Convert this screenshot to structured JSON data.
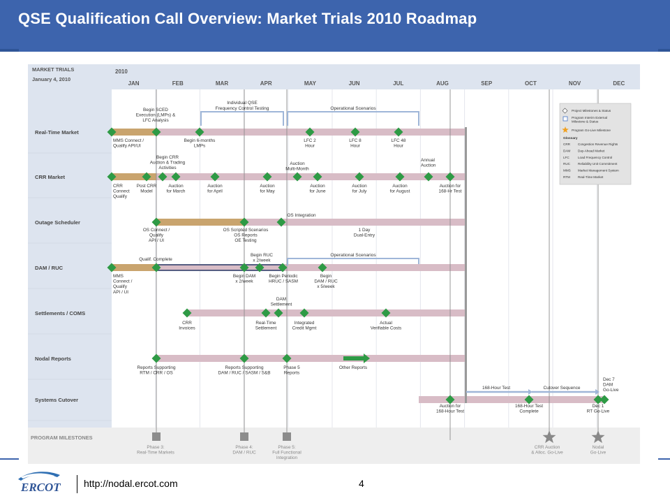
{
  "header": {
    "title": "QSE Qualification Call Overview: Market Trials 2010 Roadmap"
  },
  "corner": {
    "line1": "MARKET TRIALS",
    "line2": "January 4, 2010"
  },
  "year": "2010",
  "months": [
    "JAN",
    "FEB",
    "MAR",
    "APR",
    "MAY",
    "JUN",
    "JUL",
    "AUG",
    "SEP",
    "OCT",
    "NOV",
    "DEC"
  ],
  "tracks": [
    "Real-Time Market",
    "CRR Market",
    "Outage Scheduler",
    "DAM / RUC",
    "Settlements / COMS",
    "Nodal Reports",
    "Systems Cutover"
  ],
  "program_milestones_label": "PROGRAM MILESTONES",
  "bracket_labels": {
    "freq": "Individual QSE\nFrequency Control Testing",
    "ops_rt": "Operational Scenarios",
    "ops_dam": "Operational Scenarios",
    "h168": "168-Hour Test",
    "cutover": "Cutover Sequence"
  },
  "milestone_labels": [
    "Begin SCED\nExecution (LMPs) &\nLFC Analysis",
    "MMS Connect /\nQualify API/UI",
    "Begin 6-months\nLMPs",
    "LFC 2\nHour",
    "LFC 8\nHour",
    "LFC 48\nHour",
    "Begin CRR\nAuction & Trading\nActivities",
    "Auction\nMulti-Month",
    "Annual\nAuction",
    "CRR\nConnect\nQualify",
    "Post CRR\nModel",
    "Auction\nfor March",
    "Auction\nfor April",
    "Auction\nfor May",
    "Auction\nfor June",
    "Auction\nfor July",
    "Auction\nfor August",
    "Auction for\n168-Hr Test",
    "OS Integration",
    "OS Connect /\nQualify\nAPI / UI",
    "OS Scripted Scenarios\nOS Reports\nOE Testing",
    "1 Day\nDual-Entry",
    "Begin RUC\nx 2/week",
    "Qualif. Complete",
    "MMS\nConnect /\nQualify\nAPI / UI",
    "Begin DAM\nx 2/week",
    "Begin Periodic\nHRUC / SASM",
    "Begin\nDAM / RUC\nx 5/week",
    "DAM\nSettlement",
    "CRR\nInvoices",
    "Real-Time\nSettlement",
    "Integrated\nCredit Mgmt",
    "Actual\nVerifiable Costs",
    "Reports Supporting\nRTM / CRR / OS",
    "Reports Supporting\nDAM / RUC / SASM / S&B",
    "Phase 5\nReports",
    "Other Reports",
    "Dec 7\nDAM\nGo-Live",
    "Auction for\n168-Hour Test",
    "168-Hour Test\nComplete",
    "Dec 1\nRT Go-Live"
  ],
  "program_milestones": [
    "Phase 3:\nReal-Time Markets",
    "Phase 4:\nDAM / RUC",
    "Phase 5:\nFull Functional\nIntegration",
    "CRR  Auction\n& Alloc. Go-Live",
    "Nodal\nGo-Live"
  ],
  "legend": {
    "items": [
      "Project Milestones & Status",
      "Program Interim External\nMilestone & Status",
      "Program Go-Live Milestone"
    ],
    "glossary_title": "Glossary",
    "glossary": [
      [
        "CRR",
        "Congestion Revenue Rights"
      ],
      [
        "DAM",
        "Day-Ahead Market"
      ],
      [
        "LFC",
        "Load Frequency Control"
      ],
      [
        "RUC",
        "Reliability Unit Commitment"
      ],
      [
        "MMS",
        "Market Management System"
      ],
      [
        "RTM",
        "Real-Time Market"
      ]
    ]
  },
  "colors": {
    "header": "#3d64ad",
    "bar": "#d8bcc6",
    "bar_progress": "#c9a46e",
    "diamond": "#2e9a45",
    "bracket": "#9fb6d8",
    "grid_bg": "#dde4ef"
  },
  "footer": {
    "url": "http://nodal.ercot.com",
    "page": "4",
    "logo_text": "ERCOT"
  }
}
